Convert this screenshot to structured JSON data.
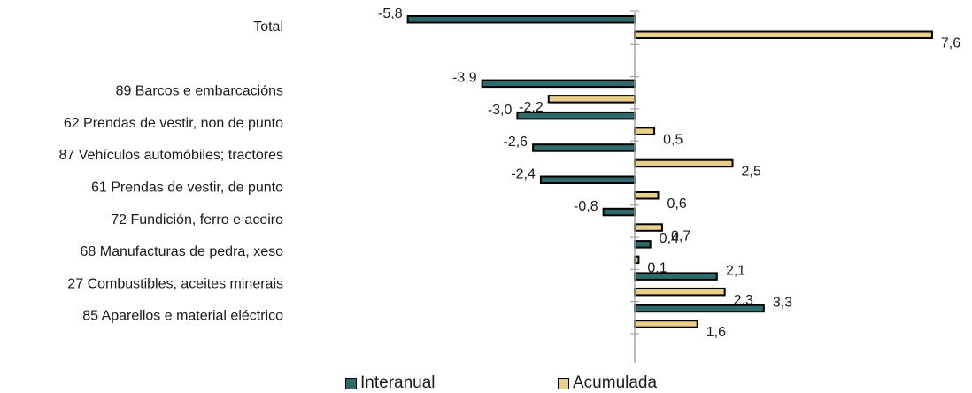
{
  "chart_data": {
    "type": "bar",
    "orientation": "horizontal",
    "categories": [
      "Total",
      "",
      "89 Barcos e embarcacións",
      "62 Prendas de vestir, non de punto",
      "87 Vehículos automóbiles; tractores",
      "61 Prendas de vestir, de punto",
      "72 Fundición, ferro e aceiro",
      "68 Manufacturas de pedra, xeso",
      "27 Combustibles, aceites minerais",
      "85 Aparellos e material eléctrico"
    ],
    "series": [
      {
        "name": "Interanual",
        "color": "#2e6a6a",
        "values": [
          -5.8,
          null,
          -3.9,
          -3.0,
          -2.6,
          -2.4,
          -0.8,
          0.4,
          2.1,
          3.3
        ],
        "labels": [
          "-5,8",
          "",
          "-3,9",
          "-3,0",
          "-2,6",
          "-2,4",
          "-0,8",
          "0,4",
          "2,1",
          "3,3"
        ]
      },
      {
        "name": "Acumulada",
        "color": "#e8d08a",
        "values": [
          7.6,
          null,
          -2.2,
          0.5,
          2.5,
          0.6,
          0.7,
          0.1,
          2.3,
          1.6
        ],
        "labels": [
          "7,6",
          "",
          "-2,2",
          "0,5",
          "2,5",
          "0,6",
          "0,7",
          "0,1",
          "2,3",
          "1,6"
        ]
      }
    ],
    "xlim": [
      -5.8,
      7.6
    ],
    "legend_position": "bottom",
    "grid": false
  },
  "legend": {
    "items": [
      {
        "label": "Interanual",
        "color": "#2e6a6a"
      },
      {
        "label": "Acumulada",
        "color": "#e8d08a"
      }
    ]
  }
}
